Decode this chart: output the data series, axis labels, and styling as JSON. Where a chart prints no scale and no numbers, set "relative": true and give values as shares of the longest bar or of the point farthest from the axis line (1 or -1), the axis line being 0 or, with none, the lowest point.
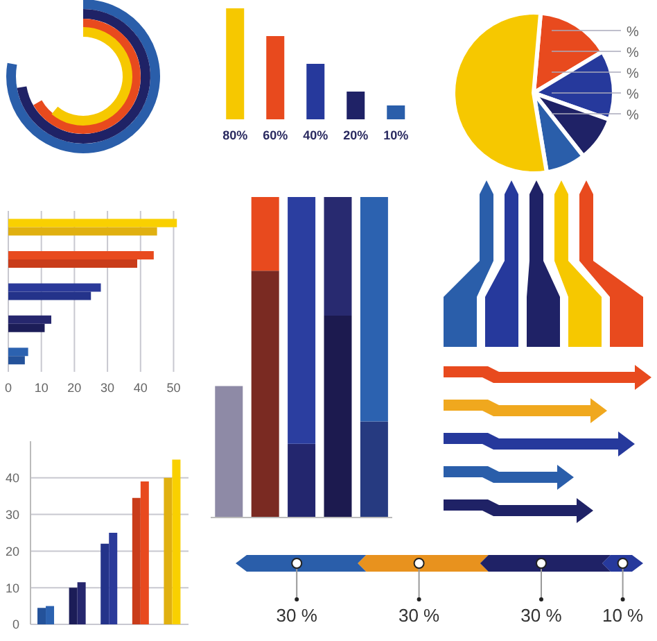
{
  "chart_data": [
    {
      "type": "bar",
      "categories": [
        null,
        null,
        null,
        null,
        null
      ],
      "values": [
        80,
        60,
        40,
        20,
        10
      ],
      "colors": [
        "#f6c800",
        "#e84a1e",
        "#26399c",
        "#1f2266",
        "#2a5eaa"
      ],
      "value_labels": [
        "80%",
        "60%",
        "40%",
        "20%",
        "10%"
      ]
    },
    {
      "type": "pie",
      "categories": [
        null,
        null,
        null,
        null,
        null
      ],
      "values": [
        15,
        14,
        9,
        8,
        54
      ],
      "colors": [
        "#e84a1e",
        "#26399c",
        "#1f2266",
        "#2a5eaa",
        "#f6c800"
      ],
      "annotations": [
        "%",
        "%",
        "%",
        "%",
        "%"
      ]
    },
    {
      "type": "bar",
      "orientation": "horizontal",
      "categories": [
        null,
        null,
        null,
        null,
        null
      ],
      "series": [
        {
          "values": [
            51,
            44,
            28,
            13,
            6
          ],
          "colors": [
            "#f9d000",
            "#e84a1e",
            "#2b3a9a",
            "#26276e",
            "#2c62b0"
          ]
        },
        {
          "values": [
            45,
            39,
            25,
            11,
            5
          ],
          "colors": [
            "#e0b010",
            "#c93c1a",
            "#24338a",
            "#1c1d58",
            "#24529a"
          ]
        }
      ],
      "xlim": [
        0,
        52
      ],
      "xticks": [
        0,
        10,
        20,
        30,
        40,
        50
      ],
      "grid": "x"
    },
    {
      "type": "bar",
      "categories": [
        null,
        null,
        null,
        null,
        null
      ],
      "series": [
        {
          "values": [
            4.5,
            10,
            22,
            34.5,
            40
          ],
          "colors": [
            "#24529a",
            "#1c1d58",
            "#24338a",
            "#c93c1a",
            "#e0b010"
          ]
        },
        {
          "values": [
            5,
            11.5,
            25,
            39,
            45
          ],
          "colors": [
            "#2c62b0",
            "#26276e",
            "#2b3a9a",
            "#e84a1e",
            "#f9d000"
          ]
        }
      ],
      "ylim": [
        0,
        50
      ],
      "yticks": [
        0,
        10,
        20,
        30,
        40
      ],
      "grid": "y"
    },
    {
      "type": "bar",
      "stacked": true,
      "relative": true,
      "categories": [
        null,
        null,
        null,
        null,
        null
      ],
      "series": [
        {
          "values": [
            0.41,
            0.77,
            0.23,
            0.63,
            0.3
          ],
          "colors": [
            "#8e8aa6",
            "#7a2a22",
            "#23266e",
            "#1c1a4f",
            "#263a80"
          ]
        },
        {
          "values": [
            0,
            0.23,
            0.77,
            0.37,
            0.7
          ],
          "colors": [
            "#8e8aa6",
            "#e84a1e",
            "#2b3ea0",
            "#282a70",
            "#2c62b0"
          ]
        }
      ]
    },
    {
      "type": "other",
      "categories": [
        null,
        null,
        null,
        null
      ],
      "values": [
        30,
        30,
        30,
        10
      ],
      "colors": [
        "#2a5eaa",
        "#e8921e",
        "#1f2266",
        "#26399c"
      ],
      "value_labels": [
        "30 %",
        "30 %",
        "30 %",
        "10 %"
      ]
    }
  ]
}
